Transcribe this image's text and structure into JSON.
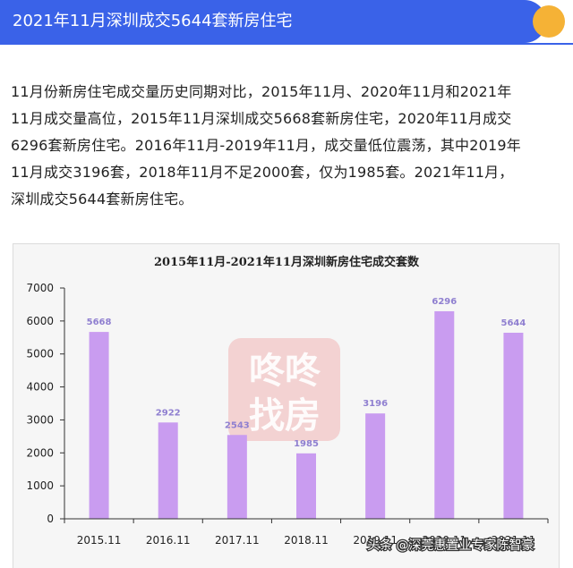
{
  "banner": {
    "title": "2021年11月深圳成交5644套新房住宅",
    "color": "#3a62e8",
    "dot_color": "#f5b236"
  },
  "article": {
    "lines": [
      "11月份新房住宅成交量历史同期对比，2015年11月、2020年11月和2021年",
      "11月成交量高位，2015年11月深圳成交5668套新房住宅，2020年11月成交",
      "6296套新房住宅。2016年11月-2019年11月，成交量低位震荡，其中2019年",
      "11月成交3196套，2018年11月不足2000套，仅为1985套。2021年11月，",
      "深圳成交5644套新房住宅。"
    ]
  },
  "chart_data": {
    "type": "bar",
    "title": "2015年11月-2021年11月深圳新房住宅成交套数",
    "categories": [
      "2015.11",
      "2016.11",
      "2017.11",
      "2018.11",
      "2019.11",
      "2020.11",
      "2021.11"
    ],
    "values": [
      5668,
      2922,
      2543,
      1985,
      3196,
      6296,
      5644
    ],
    "yticks": [
      0,
      1000,
      2000,
      3000,
      4000,
      5000,
      6000,
      7000
    ],
    "ylim": [
      0,
      7000
    ],
    "bar_color": "#c99cf0",
    "label_color": "#8f7fd0",
    "grid": false
  },
  "watermark": {
    "line1": "咚咚",
    "line2": "找房"
  },
  "credit": {
    "text": "头条 @深莞惠置业专家陈智豪"
  }
}
